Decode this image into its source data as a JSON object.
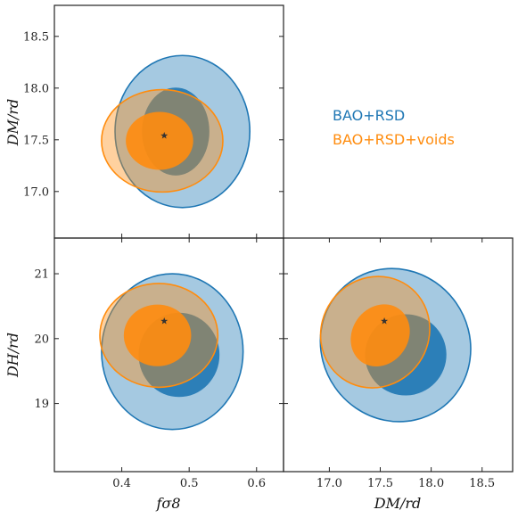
{
  "colors": {
    "bao_rsd": "#1f77b4",
    "bao_rsd_voids": "#ff8c0e",
    "star": "#333333",
    "frame": "#222222"
  },
  "legend": {
    "entries": [
      {
        "label": "BAO+RSD",
        "color": "#1f77b4"
      },
      {
        "label": "BAO+RSD+voids",
        "color": "#ff8c0e"
      }
    ],
    "placement": "empty upper-right panel"
  },
  "axis_labels": {
    "fsigma8": "fσ8",
    "dm": "DM/rd",
    "dh": "DH/rd"
  },
  "chart_data": [
    {
      "type": "scatter",
      "panel": "DM/rd vs fsigma8",
      "xlabel": "",
      "ylabel": "DM/rd",
      "xlim": [
        0.3,
        0.64
      ],
      "ylim": [
        16.55,
        18.8
      ],
      "xticks": [],
      "yticks": [
        17.0,
        17.5,
        18.0,
        18.5
      ],
      "ytick_labels": [
        "17.0",
        "17.5",
        "18.0",
        "18.5"
      ],
      "fiducial": {
        "x": 0.463,
        "y": 17.54
      },
      "series": [
        {
          "name": "BAO+RSD",
          "color": "#1f77b4",
          "contour_68": {
            "center": [
              0.48,
              17.58
            ],
            "width": 0.1,
            "height": 0.85
          },
          "contour_95": {
            "center": [
              0.49,
              17.58
            ],
            "width": 0.2,
            "height": 1.47
          }
        },
        {
          "name": "BAO+RSD+voids",
          "color": "#ff8c0e",
          "contour_68": {
            "center": [
              0.456,
              17.49
            ],
            "width": 0.1,
            "height": 0.56
          },
          "contour_95": {
            "center": [
              0.46,
              17.49
            ],
            "width": 0.18,
            "height": 0.99
          }
        }
      ]
    },
    {
      "type": "scatter",
      "panel": "DH/rd vs fsigma8",
      "xlabel": "fσ8",
      "ylabel": "DH/rd",
      "xlim": [
        0.3,
        0.64
      ],
      "ylim": [
        17.95,
        21.55
      ],
      "xticks": [
        0.4,
        0.5,
        0.6
      ],
      "xtick_labels": [
        "0.4",
        "0.5",
        "0.6"
      ],
      "yticks": [
        19,
        20,
        21
      ],
      "ytick_labels": [
        "19",
        "20",
        "21"
      ],
      "fiducial": {
        "x": 0.463,
        "y": 20.27
      },
      "series": [
        {
          "name": "BAO+RSD",
          "color": "#1f77b4",
          "contour_68": {
            "center": [
              0.485,
              19.75
            ],
            "width": 0.12,
            "height": 1.3
          },
          "contour_95": {
            "center": [
              0.475,
              19.8
            ],
            "width": 0.21,
            "height": 2.4
          }
        },
        {
          "name": "BAO+RSD+voids",
          "color": "#ff8c0e",
          "contour_68": {
            "center": [
              0.453,
              20.05
            ],
            "width": 0.1,
            "height": 0.95
          },
          "contour_95": {
            "center": [
              0.455,
              20.05
            ],
            "width": 0.175,
            "height": 1.6
          }
        }
      ]
    },
    {
      "type": "scatter",
      "panel": "DH/rd vs DM/rd",
      "xlabel": "DM/rd",
      "ylabel": "",
      "xlim": [
        16.55,
        18.8
      ],
      "ylim": [
        17.95,
        21.55
      ],
      "xticks": [
        17.0,
        17.5,
        18.0,
        18.5
      ],
      "xtick_labels": [
        "17.0",
        "17.5",
        "18.0",
        "18.5"
      ],
      "yticks": [],
      "fiducial": {
        "x": 17.54,
        "y": 20.27
      },
      "series": [
        {
          "name": "BAO+RSD",
          "color": "#1f77b4",
          "contour_68": {
            "center": [
              17.75,
              19.75
            ],
            "width": 0.8,
            "height": 1.25,
            "angle": -35
          },
          "contour_95": {
            "center": [
              17.65,
              19.9
            ],
            "width": 1.45,
            "height": 2.4,
            "angle": -35
          },
          "rotation_deg": -35
        },
        {
          "name": "BAO+RSD+voids",
          "color": "#ff8c0e",
          "contour_68": {
            "center": [
              17.5,
              20.05
            ],
            "width": 0.55,
            "height": 1.0,
            "angle": 35
          },
          "contour_95": {
            "center": [
              17.45,
              20.1
            ],
            "width": 1.05,
            "height": 1.75,
            "angle": 35
          },
          "rotation_deg": 35
        }
      ]
    }
  ]
}
